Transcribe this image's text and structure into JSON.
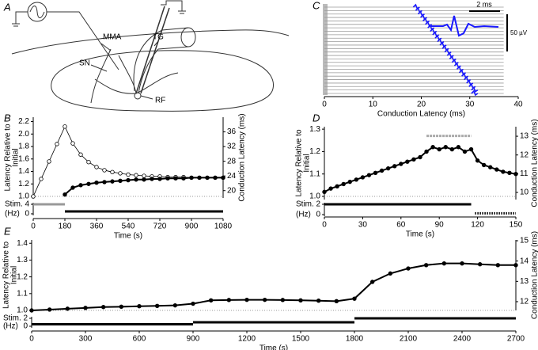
{
  "diagram": {
    "panel_label": "A",
    "labels": {
      "mma": "MMA",
      "tg": "TG",
      "sn": "SN",
      "rf": "RF"
    }
  },
  "chart_data": [
    {
      "type": "raster",
      "panel_label": "C",
      "xlabel": "Conduction Latency (ms)",
      "xlim": [
        0,
        40
      ],
      "xticks": [
        0,
        10,
        20,
        30,
        40
      ],
      "values": [
        19,
        19.5,
        20,
        20.5,
        21,
        21.5,
        22,
        22.5,
        23,
        23.5,
        24,
        24.5,
        25,
        25.5,
        26,
        26.5,
        27,
        27.5,
        28,
        28.5,
        29,
        29.5,
        30,
        30.5,
        31,
        31
      ],
      "color": "#1a1aff",
      "trace_color": "#9a9a9a",
      "scale_labels": [
        "2 ms",
        "50 µV"
      ]
    },
    {
      "type": "scatter",
      "panel_label": "B",
      "ylabel": [
        "Latency Relative to",
        "Initial"
      ],
      "y2label": "Conduction Latency (ms)",
      "xlabel": "Time (s)",
      "xlim": [
        0,
        1080
      ],
      "xticks": [
        0,
        180,
        360,
        540,
        720,
        900,
        1080
      ],
      "ylim": [
        0.975,
        2.27
      ],
      "yticks": [
        {
          "value": 1,
          "label": "1.0"
        },
        1.2,
        1.4,
        1.6,
        1.8,
        {
          "value": 2,
          "label": "2.0"
        },
        2.2
      ],
      "y2lim": [
        18,
        40
      ],
      "y2ticks": [
        20,
        24,
        28,
        32,
        36
      ],
      "hline": 1,
      "x": [
        0,
        45,
        90,
        135,
        180,
        225,
        270,
        315,
        360,
        405,
        450,
        495,
        540,
        585,
        630,
        675,
        720,
        765,
        810,
        855,
        900,
        945,
        990,
        1035,
        1080
      ],
      "series": [
        {
          "color": "#000000",
          "marker": "open",
          "values": [
            1.0,
            1.28,
            1.56,
            1.84,
            2.12,
            1.85,
            1.67,
            1.55,
            1.47,
            1.42,
            1.39,
            1.37,
            1.35,
            1.34,
            1.33,
            1.32,
            1.32,
            1.31,
            1.31,
            1.31,
            1.3,
            1.3,
            1.3,
            1.3,
            1.3
          ]
        },
        {
          "color": "#000000",
          "marker": "filled",
          "values": [
            null,
            null,
            null,
            null,
            1.03,
            1.14,
            1.18,
            1.2,
            1.22,
            1.23,
            1.24,
            1.25,
            1.26,
            1.27,
            1.27,
            1.28,
            1.28,
            1.29,
            1.29,
            1.29,
            1.3,
            1.3,
            1.3,
            1.3,
            1.3
          ]
        }
      ],
      "stim": {
        "labels": [
          "Stim.",
          "(Hz)"
        ],
        "ylim": [
          0,
          4
        ],
        "yticks": [
          0,
          4
        ],
        "segments": [
          {
            "start": 0,
            "end": 180,
            "hz": 4,
            "color": "#999999",
            "style": "solid"
          },
          {
            "start": 180,
            "end": 1080,
            "hz": 1,
            "color": "#000000",
            "style": "solid"
          }
        ]
      }
    },
    {
      "type": "scatter",
      "panel_label": "D",
      "ylabel": [
        "Latency Relative to",
        "Initial"
      ],
      "y2label": "Conduction Latency (ms)",
      "xlabel": "Time (s)",
      "xlim": [
        0,
        150
      ],
      "xticks": [
        0,
        30,
        60,
        90,
        120,
        150
      ],
      "ylim": [
        0.986,
        1.311
      ],
      "yticks": [
        {
          "value": 1,
          "label": "1.0"
        },
        1.1,
        1.2,
        1.3
      ],
      "y2lim": [
        9.62,
        13.51
      ],
      "y2ticks": [
        10,
        11,
        12,
        13
      ],
      "hline": 1,
      "highlight": {
        "start": 80,
        "end": 115,
        "y": 1.27,
        "color": "#aaaaaa"
      },
      "x": [
        0,
        5,
        10,
        15,
        20,
        25,
        30,
        35,
        40,
        45,
        50,
        55,
        60,
        65,
        70,
        75,
        80,
        85,
        90,
        95,
        100,
        105,
        110,
        115,
        120,
        125,
        130,
        135,
        140,
        145,
        150
      ],
      "series": [
        {
          "color": "#000000",
          "marker": "filled",
          "values": [
            1.02,
            1.035,
            1.045,
            1.055,
            1.065,
            1.075,
            1.085,
            1.095,
            1.105,
            1.115,
            1.125,
            1.135,
            1.145,
            1.155,
            1.165,
            1.175,
            1.2,
            1.22,
            1.21,
            1.22,
            1.21,
            1.22,
            1.2,
            1.21,
            1.16,
            1.14,
            1.13,
            1.12,
            1.11,
            1.105,
            1.1
          ]
        }
      ],
      "stim": {
        "labels": [
          "Stim.",
          "(Hz)"
        ],
        "ylim": [
          0,
          2
        ],
        "yticks": [
          0,
          2
        ],
        "segments": [
          {
            "start": 0,
            "end": 115,
            "hz": 2,
            "color": "#000000",
            "style": "solid"
          },
          {
            "start": 118,
            "end": 150,
            "hz": 0.25,
            "color": "#000000",
            "style": "dotted"
          }
        ]
      }
    },
    {
      "type": "scatter",
      "panel_label": "E",
      "ylabel": [
        "Latency Relative to",
        "Initial"
      ],
      "y2label": "Conduction Latency (ms)",
      "xlabel": "Time (s)",
      "xlim": [
        0,
        2700
      ],
      "xticks": [
        0,
        300,
        600,
        900,
        1200,
        1500,
        1800,
        2100,
        2400,
        2700
      ],
      "ylim": [
        1.0,
        1.42
      ],
      "yticks": [
        {
          "value": 1,
          "label": "1.0"
        },
        1.1,
        1.2,
        1.3,
        1.4
      ],
      "y2lim": [
        11.57,
        15.04
      ],
      "y2ticks": [
        12,
        13,
        14,
        15
      ],
      "hline": 1,
      "x": [
        0,
        100,
        200,
        300,
        400,
        500,
        600,
        700,
        800,
        900,
        1000,
        1100,
        1200,
        1300,
        1400,
        1500,
        1600,
        1700,
        1800,
        1900,
        2000,
        2100,
        2200,
        2300,
        2400,
        2500,
        2600,
        2700
      ],
      "series": [
        {
          "color": "#000000",
          "marker": "filled",
          "values": [
            1.0,
            1.005,
            1.01,
            1.015,
            1.02,
            1.022,
            1.025,
            1.027,
            1.03,
            1.04,
            1.06,
            1.062,
            1.063,
            1.063,
            1.062,
            1.06,
            1.058,
            1.055,
            1.07,
            1.17,
            1.22,
            1.25,
            1.27,
            1.28,
            1.28,
            1.275,
            1.27,
            1.27
          ]
        }
      ],
      "stim": {
        "labels": [
          "Stim.",
          "(Hz)"
        ],
        "ylim": [
          0,
          2
        ],
        "yticks": [
          0,
          2
        ],
        "segments": [
          {
            "start": 0,
            "end": 900,
            "hz": 0.5,
            "color": "#000000",
            "style": "solid"
          },
          {
            "start": 900,
            "end": 1800,
            "hz": 1,
            "color": "#000000",
            "style": "solid"
          },
          {
            "start": 1800,
            "end": 2700,
            "hz": 2,
            "color": "#000000",
            "style": "solid"
          }
        ]
      }
    }
  ]
}
